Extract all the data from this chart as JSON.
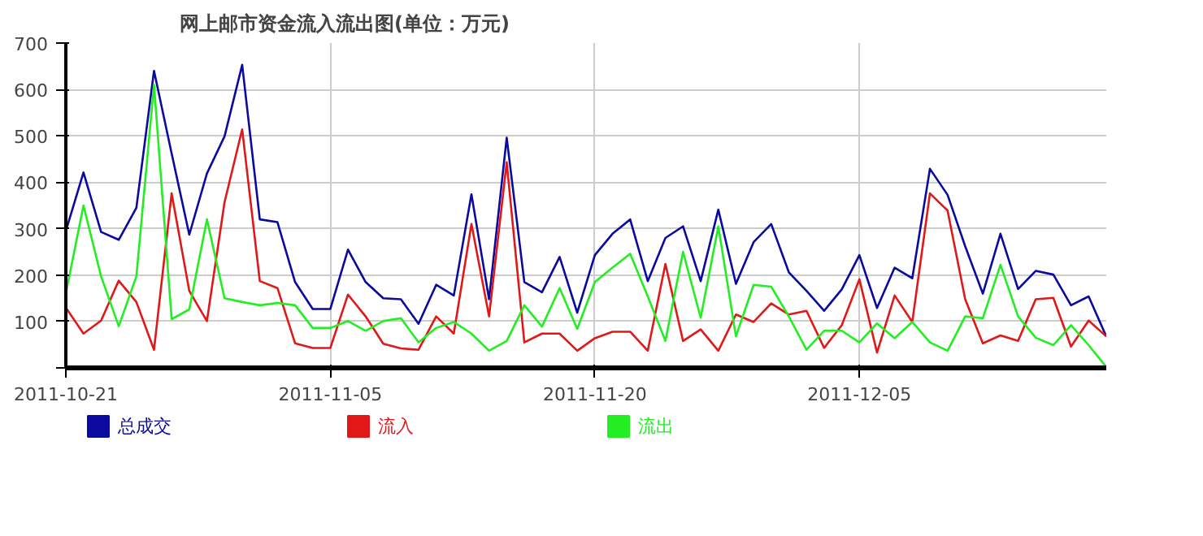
{
  "chart_data": {
    "type": "line",
    "title": "网上邮市资金流入流出图(单位：万元)",
    "x": [
      "2011-10-21",
      "2011-10-22",
      "2011-10-23",
      "2011-10-24",
      "2011-10-25",
      "2011-10-26",
      "2011-10-27",
      "2011-10-28",
      "2011-10-29",
      "2011-10-30",
      "2011-10-31",
      "2011-11-01",
      "2011-11-02",
      "2011-11-03",
      "2011-11-04",
      "2011-11-05",
      "2011-11-06",
      "2011-11-07",
      "2011-11-08",
      "2011-11-09",
      "2011-11-10",
      "2011-11-11",
      "2011-11-12",
      "2011-11-13",
      "2011-11-14",
      "2011-11-15",
      "2011-11-16",
      "2011-11-17",
      "2011-11-18",
      "2011-11-19",
      "2011-11-20",
      "2011-11-21",
      "2011-11-22",
      "2011-11-23",
      "2011-11-24",
      "2011-11-25",
      "2011-11-26",
      "2011-11-27",
      "2011-11-28",
      "2011-11-29",
      "2011-11-30",
      "2011-12-01",
      "2011-12-02",
      "2011-12-03",
      "2011-12-04",
      "2011-12-05",
      "2011-12-06",
      "2011-12-07",
      "2011-12-08",
      "2011-12-09",
      "2011-12-10",
      "2011-12-11",
      "2011-12-12",
      "2011-12-13",
      "2011-12-14",
      "2011-12-15",
      "2011-12-16",
      "2011-12-17",
      "2011-12-18",
      "2011-12-19"
    ],
    "xlim": [
      "2011-10-21",
      "2011-12-19"
    ],
    "xticks": [
      "2011-10-21",
      "2011-11-05",
      "2011-11-20",
      "2011-12-05"
    ],
    "ylim": [
      0,
      700
    ],
    "yticks": [
      {
        "value": 0,
        "label": null
      },
      100,
      200,
      300,
      400,
      500,
      600,
      700
    ],
    "grid": true,
    "legend": "bottom",
    "marker": "none",
    "line_style": "solid",
    "series": [
      {
        "name": "总成交",
        "color": "#0a0a9e",
        "values": [
          295,
          421,
          293,
          276,
          345,
          640,
          462,
          287,
          419,
          499,
          653,
          320,
          314,
          185,
          127,
          127,
          255,
          185,
          150,
          148,
          95,
          179,
          156,
          374,
          148,
          496,
          185,
          163,
          239,
          119,
          243,
          289,
          320,
          187,
          280,
          305,
          187,
          341,
          181,
          271,
          310,
          206,
          166,
          123,
          169,
          243,
          129,
          216,
          193,
          429,
          373,
          262,
          160,
          289,
          170,
          209,
          201,
          135,
          154,
          68
        ]
      },
      {
        "name": "流入",
        "color": "#e01818",
        "values": [
          130,
          74,
          102,
          188,
          142,
          39,
          376,
          166,
          101,
          357,
          514,
          187,
          172,
          53,
          43,
          43,
          158,
          111,
          52,
          42,
          39,
          111,
          74,
          310,
          111,
          443,
          55,
          74,
          74,
          37,
          64,
          78,
          78,
          37,
          224,
          58,
          83,
          37,
          115,
          99,
          139,
          115,
          123,
          43,
          92,
          191,
          33,
          156,
          99,
          376,
          339,
          148,
          53,
          70,
          58,
          148,
          151,
          46,
          102,
          68
        ]
      },
      {
        "name": "流出",
        "color": "#22ee22",
        "values": [
          160,
          350,
          197,
          90,
          197,
          610,
          105,
          126,
          320,
          150,
          142,
          135,
          140,
          135,
          86,
          86,
          101,
          80,
          101,
          107,
          55,
          86,
          99,
          74,
          37,
          58,
          135,
          89,
          172,
          84,
          185,
          216,
          246,
          154,
          58,
          250,
          108,
          305,
          68,
          179,
          175,
          111,
          39,
          80,
          80,
          55,
          96,
          64,
          99,
          55,
          37,
          111,
          107,
          222,
          111,
          65,
          49,
          92,
          49,
          2
        ]
      }
    ]
  }
}
